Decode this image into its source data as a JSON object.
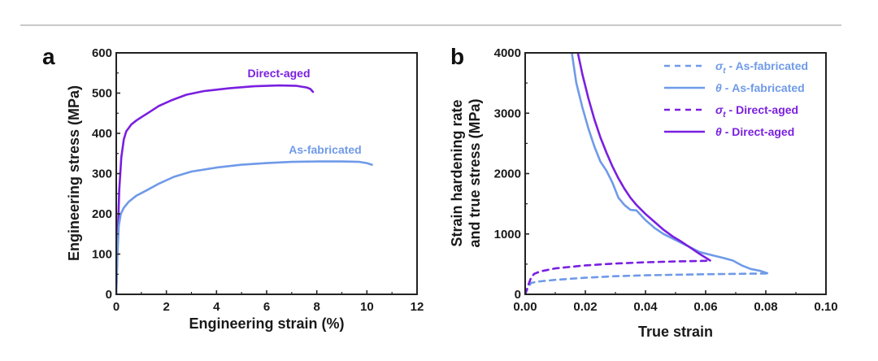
{
  "chart_data": [
    {
      "panel": "a",
      "type": "line",
      "xlabel": "Engineering strain (%)",
      "ylabel": "Engineering stress (MPa)",
      "xlim": [
        0,
        12
      ],
      "ylim": [
        0,
        600
      ],
      "xticks": [
        0,
        2,
        4,
        6,
        8,
        10,
        12
      ],
      "yticks": [
        0,
        100,
        200,
        300,
        400,
        500,
        600
      ],
      "xtick_labels": [
        "0",
        "2",
        "4",
        "6",
        "8",
        "10",
        "12"
      ],
      "ytick_labels": [
        "0",
        "100",
        "200",
        "300",
        "400",
        "500",
        "600"
      ],
      "grid": false,
      "series": [
        {
          "name": "Direct-aged",
          "color": "#7a1fe0",
          "style": "solid",
          "annotation": "Direct-aged",
          "x": [
            0,
            0.05,
            0.12,
            0.2,
            0.3,
            0.4,
            0.6,
            0.8,
            1.0,
            1.3,
            1.7,
            2.2,
            2.8,
            3.5,
            4.5,
            5.5,
            6.5,
            7.2,
            7.6,
            7.75,
            7.85
          ],
          "y": [
            0,
            120,
            260,
            340,
            385,
            405,
            422,
            432,
            440,
            452,
            468,
            482,
            496,
            505,
            512,
            517,
            519,
            518,
            514,
            510,
            503
          ]
        },
        {
          "name": "As-fabricated",
          "color": "#6f9ae8",
          "style": "solid",
          "annotation": "As-fabricated",
          "x": [
            0,
            0.05,
            0.1,
            0.18,
            0.3,
            0.5,
            0.8,
            1.2,
            1.7,
            2.3,
            3.0,
            4.0,
            5.0,
            6.0,
            7.0,
            8.0,
            9.0,
            9.7,
            10.0,
            10.2
          ],
          "y": [
            0,
            100,
            170,
            200,
            215,
            230,
            245,
            258,
            275,
            292,
            305,
            315,
            322,
            326,
            329,
            330,
            330,
            329,
            326,
            322
          ]
        }
      ]
    },
    {
      "panel": "b",
      "type": "line",
      "xlabel": "True strain",
      "ylabel": "Strain hardening rate and true stress (MPa)",
      "ylabel_lines": [
        "Strain hardening rate",
        "and true stress (MPa)"
      ],
      "xlim": [
        0,
        0.1
      ],
      "ylim": [
        0,
        4000
      ],
      "xticks": [
        0,
        0.02,
        0.04,
        0.06,
        0.08,
        0.1
      ],
      "yticks": [
        0,
        1000,
        2000,
        3000,
        4000
      ],
      "xtick_labels": [
        "0.00",
        "0.02",
        "0.04",
        "0.06",
        "0.08",
        "0.10"
      ],
      "ytick_labels": [
        "0",
        "1000",
        "2000",
        "3000",
        "4000"
      ],
      "grid": false,
      "legend_position": "top-right",
      "series": [
        {
          "name": "σt - As-fabricated",
          "legend_symbol": "σ",
          "legend_sub": "t",
          "legend_rest": " - As-fabricated",
          "color": "#6f9ae8",
          "style": "dashed",
          "x": [
            0,
            0.001,
            0.002,
            0.005,
            0.01,
            0.02,
            0.03,
            0.04,
            0.05,
            0.06,
            0.07,
            0.08
          ],
          "y": [
            0,
            120,
            190,
            215,
            240,
            275,
            300,
            315,
            325,
            333,
            340,
            345
          ]
        },
        {
          "name": "θ - As-fabricated",
          "legend_symbol": "θ",
          "legend_sub": "",
          "legend_rest": " - As-fabricated",
          "color": "#6f9ae8",
          "style": "solid",
          "x": [
            0.0155,
            0.017,
            0.019,
            0.021,
            0.023,
            0.025,
            0.027,
            0.029,
            0.031,
            0.033,
            0.035,
            0.037,
            0.04,
            0.043,
            0.046,
            0.05,
            0.054,
            0.058,
            0.062,
            0.066,
            0.069,
            0.072,
            0.075,
            0.078,
            0.0805
          ],
          "y": [
            4000,
            3500,
            3100,
            2750,
            2450,
            2200,
            2050,
            1850,
            1600,
            1480,
            1400,
            1390,
            1230,
            1100,
            1000,
            900,
            800,
            700,
            650,
            600,
            560,
            480,
            420,
            390,
            350
          ]
        },
        {
          "name": "σt - Direct-aged",
          "legend_symbol": "σ",
          "legend_sub": "t",
          "legend_rest": " - Direct-aged",
          "color": "#7a1fe0",
          "style": "dashed",
          "x": [
            0,
            0.001,
            0.002,
            0.003,
            0.005,
            0.01,
            0.02,
            0.03,
            0.04,
            0.05,
            0.06,
            0.0615
          ],
          "y": [
            0,
            150,
            280,
            340,
            380,
            430,
            480,
            510,
            530,
            545,
            555,
            558
          ]
        },
        {
          "name": "θ - Direct-aged",
          "legend_symbol": "θ",
          "legend_sub": "",
          "legend_rest": " - Direct-aged",
          "color": "#7a1fe0",
          "style": "solid",
          "x": [
            0.0175,
            0.019,
            0.021,
            0.023,
            0.025,
            0.027,
            0.029,
            0.031,
            0.033,
            0.035,
            0.037,
            0.04,
            0.043,
            0.046,
            0.049,
            0.052,
            0.055,
            0.058,
            0.0615
          ],
          "y": [
            4000,
            3650,
            3250,
            2900,
            2600,
            2350,
            2120,
            1920,
            1750,
            1600,
            1480,
            1330,
            1200,
            1070,
            960,
            870,
            770,
            670,
            560
          ]
        }
      ]
    }
  ],
  "panels": {
    "a_label": "a",
    "b_label": "b"
  }
}
